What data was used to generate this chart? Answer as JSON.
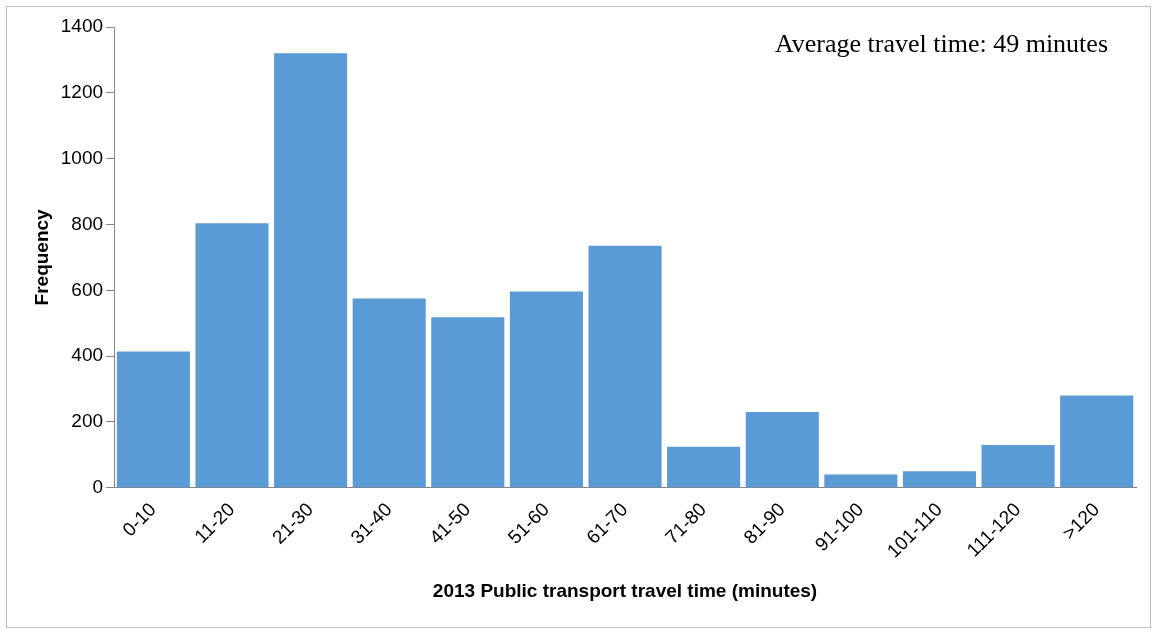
{
  "chart_data": {
    "type": "bar",
    "xlabel": "2013 Public transport travel time (minutes)",
    "ylabel": "Frequency",
    "categories": [
      "0-10",
      "11-20",
      "21-30",
      "31-40",
      "41-50",
      "51-60",
      "61-70",
      "71-80",
      "81-90",
      "91-100",
      "101-110",
      "111-120",
      ">120"
    ],
    "values": [
      414,
      804,
      1320,
      575,
      518,
      596,
      735,
      125,
      230,
      40,
      50,
      130,
      280
    ],
    "color": "#5b9bd5",
    "ylim": [
      0,
      1400
    ],
    "yticks": [
      0,
      200,
      400,
      600,
      800,
      1000,
      1200,
      1400
    ],
    "grid": false,
    "legend": false,
    "annotations": [
      "Average travel time: 49 minutes"
    ]
  }
}
